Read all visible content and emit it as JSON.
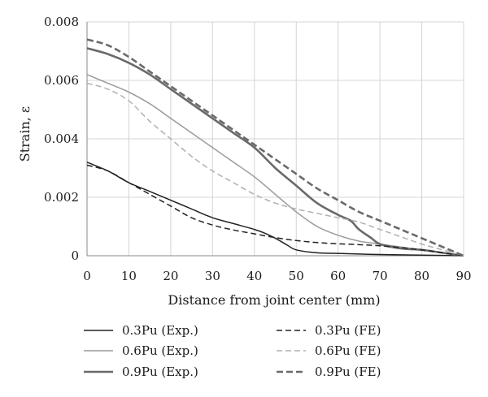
{
  "chart_data": {
    "type": "line",
    "title": "",
    "xlabel": "Distance from joint center (mm)",
    "ylabel": "Strain, ε",
    "xlim": [
      0,
      90
    ],
    "ylim": [
      0,
      0.008
    ],
    "x_ticks": [
      0,
      10,
      20,
      30,
      40,
      50,
      60,
      70,
      80,
      90
    ],
    "y_ticks": [
      0,
      0.002,
      0.004,
      0.006,
      0.008
    ],
    "x_tick_labels": [
      "0",
      "10",
      "20",
      "30",
      "40",
      "50",
      "60",
      "70",
      "80",
      "90"
    ],
    "y_tick_labels": [
      "0",
      "0.002",
      "0.004",
      "0.006",
      "0.008"
    ],
    "grid": true,
    "legend_position": "bottom",
    "series": [
      {
        "name": "0.3Pu (Exp.)",
        "color": "#222222",
        "style": "solid",
        "weight": "thin",
        "x": [
          0,
          5,
          10,
          15,
          20,
          25,
          30,
          35,
          40,
          42,
          45,
          48,
          50,
          55,
          60,
          65,
          70,
          75,
          80,
          85,
          90
        ],
        "y": [
          0.0032,
          0.0029,
          0.0025,
          0.0022,
          0.0019,
          0.0016,
          0.0013,
          0.0011,
          0.0009,
          0.0008,
          0.0006,
          0.00035,
          0.0002,
          0.0001,
          8e-05,
          6e-05,
          4e-05,
          3e-05,
          2e-05,
          1e-05,
          0
        ]
      },
      {
        "name": "0.6Pu (Exp.)",
        "color": "#9a9a9a",
        "style": "solid",
        "weight": "thin",
        "x": [
          0,
          5,
          10,
          15,
          20,
          25,
          30,
          35,
          40,
          45,
          50,
          55,
          60,
          65,
          70,
          75,
          80,
          85,
          90
        ],
        "y": [
          0.0062,
          0.0059,
          0.0056,
          0.0052,
          0.0047,
          0.0042,
          0.0037,
          0.0032,
          0.0027,
          0.0021,
          0.0015,
          0.001,
          0.0007,
          0.0005,
          0.0004,
          0.0003,
          0.0002,
          0.0001,
          0
        ]
      },
      {
        "name": "0.9Pu (Exp.)",
        "color": "#6a6a6a",
        "style": "solid",
        "weight": "thick",
        "x": [
          0,
          5,
          10,
          15,
          20,
          25,
          30,
          35,
          40,
          45,
          50,
          55,
          60,
          63,
          65,
          68,
          70,
          75,
          80,
          85,
          90
        ],
        "y": [
          0.0071,
          0.0069,
          0.0066,
          0.0062,
          0.0057,
          0.0052,
          0.0047,
          0.0042,
          0.0037,
          0.003,
          0.0024,
          0.0018,
          0.0014,
          0.0012,
          0.0009,
          0.0006,
          0.0004,
          0.00025,
          0.0002,
          0.0001,
          0
        ]
      },
      {
        "name": "0.3Pu (FE)",
        "color": "#222222",
        "style": "dashed",
        "weight": "thin",
        "x": [
          0,
          5,
          10,
          15,
          20,
          25,
          30,
          35,
          40,
          45,
          50,
          55,
          60,
          65,
          70,
          75,
          80,
          85,
          90
        ],
        "y": [
          0.0031,
          0.0029,
          0.0025,
          0.0021,
          0.0017,
          0.0013,
          0.00105,
          0.00088,
          0.00075,
          0.00062,
          0.00052,
          0.00045,
          0.00041,
          0.00038,
          0.00034,
          0.00028,
          0.0002,
          0.0001,
          0
        ]
      },
      {
        "name": "0.6Pu (FE)",
        "color": "#b0b0b0",
        "style": "dashed",
        "weight": "thin",
        "x": [
          0,
          5,
          10,
          15,
          20,
          25,
          30,
          35,
          40,
          45,
          50,
          55,
          60,
          65,
          70,
          75,
          80,
          85,
          90
        ],
        "y": [
          0.0059,
          0.0057,
          0.0053,
          0.0046,
          0.004,
          0.0034,
          0.0029,
          0.0025,
          0.0021,
          0.0018,
          0.0016,
          0.00145,
          0.0013,
          0.00115,
          0.0009,
          0.00065,
          0.0004,
          0.0002,
          0
        ]
      },
      {
        "name": "0.9Pu (FE)",
        "color": "#6a6a6a",
        "style": "dashed",
        "weight": "thick",
        "x": [
          0,
          5,
          10,
          15,
          20,
          25,
          30,
          35,
          40,
          45,
          50,
          55,
          60,
          65,
          70,
          75,
          80,
          85,
          90
        ],
        "y": [
          0.0074,
          0.0072,
          0.0068,
          0.0063,
          0.0058,
          0.0053,
          0.0048,
          0.0043,
          0.0038,
          0.0033,
          0.0028,
          0.0023,
          0.0019,
          0.0015,
          0.0012,
          0.0009,
          0.0006,
          0.0003,
          0
        ]
      }
    ]
  }
}
